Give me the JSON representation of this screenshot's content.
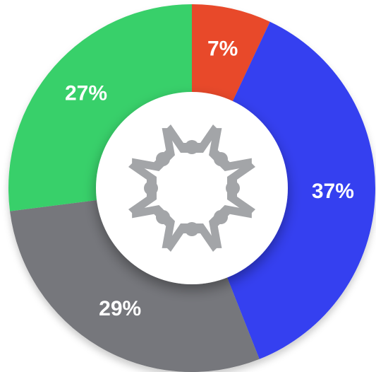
{
  "chart_data": {
    "type": "donut",
    "values": [
      7,
      37,
      29,
      27
    ],
    "value_labels": [
      "7%",
      "37%",
      "29%",
      "27%"
    ],
    "colors": [
      "#e84a2b",
      "#3440f0",
      "#76777b",
      "#37d06a"
    ]
  }
}
